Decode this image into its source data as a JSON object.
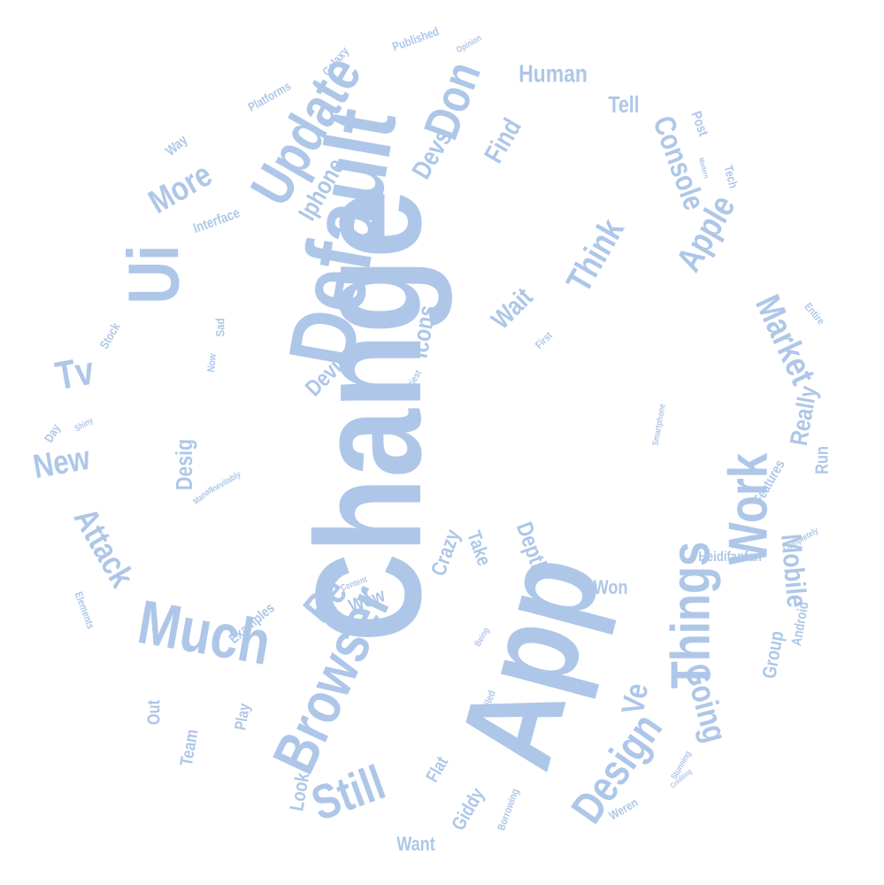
{
  "word_cloud": {
    "color": "#aec7e8",
    "background": "#ffffff",
    "words": [
      {
        "text": "Change"
      },
      {
        "text": "App"
      },
      {
        "text": "Default"
      },
      {
        "text": "Update"
      },
      {
        "text": "Browser"
      },
      {
        "text": "Ui"
      },
      {
        "text": "Much"
      },
      {
        "text": "Things"
      },
      {
        "text": "Work"
      },
      {
        "text": "Still"
      },
      {
        "text": "Don"
      },
      {
        "text": "Design"
      },
      {
        "text": "Market"
      },
      {
        "text": "Re"
      },
      {
        "text": "Apple"
      },
      {
        "text": "Think"
      },
      {
        "text": "Attack"
      },
      {
        "text": "Tv"
      },
      {
        "text": "More"
      },
      {
        "text": "Going"
      },
      {
        "text": "Console"
      },
      {
        "text": "New"
      },
      {
        "text": "Mobile"
      },
      {
        "text": "Human"
      },
      {
        "text": "Iphone"
      },
      {
        "text": "Find"
      },
      {
        "text": "Devs"
      },
      {
        "text": "Wait"
      },
      {
        "text": "Icons"
      },
      {
        "text": "Tell"
      },
      {
        "text": "Device"
      },
      {
        "text": "Ve"
      },
      {
        "text": "Really"
      },
      {
        "text": "Desig"
      },
      {
        "text": "Depth"
      },
      {
        "text": "Crazy"
      },
      {
        "text": "Wow"
      },
      {
        "text": "Take"
      },
      {
        "text": "Won"
      },
      {
        "text": "Group"
      },
      {
        "text": "Run"
      },
      {
        "text": "Look"
      },
      {
        "text": "Giddy"
      },
      {
        "text": "Flat"
      },
      {
        "text": "Want"
      },
      {
        "text": "Team"
      },
      {
        "text": "Out"
      },
      {
        "text": "Play"
      },
      {
        "text": "Examples"
      },
      {
        "text": "Android"
      },
      {
        "text": "Heidifanfan"
      },
      {
        "text": "Features"
      },
      {
        "text": "Interface"
      },
      {
        "text": "Way"
      },
      {
        "text": "Post"
      },
      {
        "text": "Published"
      },
      {
        "text": "Platforms"
      },
      {
        "text": "Galaxy"
      },
      {
        "text": "Tech"
      },
      {
        "text": "Stock"
      },
      {
        "text": "Day"
      },
      {
        "text": "Now"
      },
      {
        "text": "Sad"
      },
      {
        "text": "Prettiest"
      },
      {
        "text": "Unveiled"
      },
      {
        "text": "Elements"
      },
      {
        "text": "Borrowing"
      },
      {
        "text": "Weren"
      },
      {
        "text": "First"
      },
      {
        "text": "Entire"
      },
      {
        "text": "Inevitably"
      },
      {
        "text": "Completely"
      },
      {
        "text": "Opinion"
      },
      {
        "text": "Smartphone"
      },
      {
        "text": "Shiny"
      },
      {
        "text": "Modern"
      },
      {
        "text": "Being"
      },
      {
        "text": "Content"
      },
      {
        "text": "Manan"
      },
      {
        "text": "Crediting"
      },
      {
        "text": "Stunning"
      }
    ]
  }
}
